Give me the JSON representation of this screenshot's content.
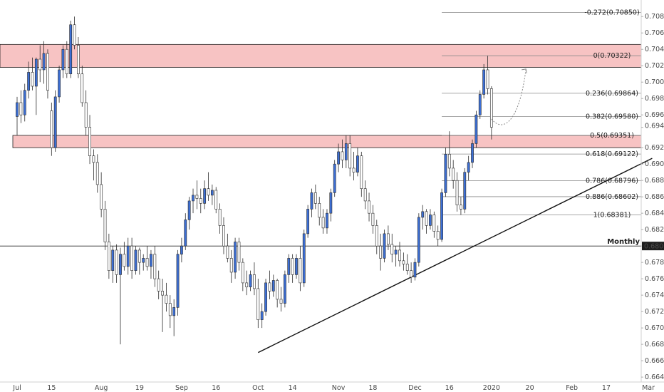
{
  "chart_data": {
    "type": "candlestick",
    "title": "",
    "y_axis": {
      "min": 0.6634,
      "max": 0.7095,
      "ticks": [
        "0.70800",
        "0.70600",
        "0.70400",
        "0.70200",
        "0.70000",
        "0.69800",
        "0.69600",
        "0.69448",
        "0.69200",
        "0.69000",
        "0.68800",
        "0.68600",
        "0.68400",
        "0.68200",
        "0.68000",
        "0.67800",
        "0.67600",
        "0.67400",
        "0.67200",
        "0.67000",
        "0.66800",
        "0.66600",
        "0.66400"
      ],
      "tick_values": [
        0.708,
        0.706,
        0.704,
        0.702,
        0.7,
        0.698,
        0.696,
        0.69448,
        0.692,
        0.69,
        0.688,
        0.686,
        0.684,
        0.682,
        0.68,
        0.678,
        0.676,
        0.674,
        0.672,
        0.67,
        0.668,
        0.666,
        0.664
      ],
      "current_price_label": "0.69448",
      "monthly_label_value": "0.68000"
    },
    "x_axis": {
      "ticks": [
        "Jul",
        "15",
        "Aug",
        "19",
        "Sep",
        "16",
        "Oct",
        "14",
        "Nov",
        "18",
        "Dec",
        "16",
        "2020",
        "20",
        "Feb",
        "17",
        "Mar"
      ],
      "tick_indices": [
        0,
        9,
        22,
        32,
        43,
        52,
        63,
        72,
        84,
        93,
        104,
        113,
        124,
        134,
        145,
        154,
        165
      ]
    },
    "candles": [
      {
        "o": 0.6958,
        "h": 0.6982,
        "l": 0.6935,
        "c": 0.6975
      },
      {
        "o": 0.6975,
        "h": 0.699,
        "l": 0.695,
        "c": 0.696
      },
      {
        "o": 0.696,
        "h": 0.6998,
        "l": 0.6952,
        "c": 0.699
      },
      {
        "o": 0.699,
        "h": 0.7025,
        "l": 0.698,
        "c": 0.7012
      },
      {
        "o": 0.7012,
        "h": 0.703,
        "l": 0.699,
        "c": 0.6995
      },
      {
        "o": 0.6995,
        "h": 0.703,
        "l": 0.696,
        "c": 0.7028
      },
      {
        "o": 0.7028,
        "h": 0.7045,
        "l": 0.7,
        "c": 0.7015
      },
      {
        "o": 0.7015,
        "h": 0.705,
        "l": 0.6998,
        "c": 0.7035
      },
      {
        "o": 0.7035,
        "h": 0.704,
        "l": 0.698,
        "c": 0.699
      },
      {
        "o": 0.6965,
        "h": 0.6975,
        "l": 0.691,
        "c": 0.692
      },
      {
        "o": 0.692,
        "h": 0.699,
        "l": 0.6915,
        "c": 0.6982
      },
      {
        "o": 0.6982,
        "h": 0.702,
        "l": 0.6975,
        "c": 0.7015
      },
      {
        "o": 0.7015,
        "h": 0.7045,
        "l": 0.7005,
        "c": 0.704
      },
      {
        "o": 0.704,
        "h": 0.705,
        "l": 0.7005,
        "c": 0.701
      },
      {
        "o": 0.701,
        "h": 0.7075,
        "l": 0.7005,
        "c": 0.707
      },
      {
        "o": 0.707,
        "h": 0.708,
        "l": 0.704,
        "c": 0.7045
      },
      {
        "o": 0.7045,
        "h": 0.7055,
        "l": 0.7005,
        "c": 0.701
      },
      {
        "o": 0.701,
        "h": 0.702,
        "l": 0.697,
        "c": 0.6975
      },
      {
        "o": 0.6975,
        "h": 0.699,
        "l": 0.6935,
        "c": 0.6945
      },
      {
        "o": 0.6945,
        "h": 0.696,
        "l": 0.69,
        "c": 0.691
      },
      {
        "o": 0.691,
        "h": 0.6918,
        "l": 0.688,
        "c": 0.6902
      },
      {
        "o": 0.6902,
        "h": 0.6912,
        "l": 0.6865,
        "c": 0.6875
      },
      {
        "o": 0.6875,
        "h": 0.689,
        "l": 0.6835,
        "c": 0.6845
      },
      {
        "o": 0.6845,
        "h": 0.6855,
        "l": 0.6795,
        "c": 0.6805
      },
      {
        "o": 0.6805,
        "h": 0.6815,
        "l": 0.676,
        "c": 0.677
      },
      {
        "o": 0.677,
        "h": 0.68,
        "l": 0.6755,
        "c": 0.6795
      },
      {
        "o": 0.6795,
        "h": 0.6802,
        "l": 0.6755,
        "c": 0.6765
      },
      {
        "o": 0.6765,
        "h": 0.6798,
        "l": 0.668,
        "c": 0.679
      },
      {
        "o": 0.679,
        "h": 0.6805,
        "l": 0.677,
        "c": 0.6775
      },
      {
        "o": 0.6775,
        "h": 0.681,
        "l": 0.6765,
        "c": 0.68
      },
      {
        "o": 0.68,
        "h": 0.681,
        "l": 0.676,
        "c": 0.677
      },
      {
        "o": 0.677,
        "h": 0.68,
        "l": 0.6765,
        "c": 0.6795
      },
      {
        "o": 0.6795,
        "h": 0.6798,
        "l": 0.6765,
        "c": 0.678
      },
      {
        "o": 0.678,
        "h": 0.679,
        "l": 0.677,
        "c": 0.6785
      },
      {
        "o": 0.6785,
        "h": 0.68,
        "l": 0.677,
        "c": 0.6775
      },
      {
        "o": 0.6775,
        "h": 0.6795,
        "l": 0.676,
        "c": 0.679
      },
      {
        "o": 0.679,
        "h": 0.68,
        "l": 0.675,
        "c": 0.676
      },
      {
        "o": 0.676,
        "h": 0.677,
        "l": 0.6735,
        "c": 0.6745
      },
      {
        "o": 0.6745,
        "h": 0.676,
        "l": 0.6695,
        "c": 0.674
      },
      {
        "o": 0.674,
        "h": 0.6755,
        "l": 0.672,
        "c": 0.673
      },
      {
        "o": 0.673,
        "h": 0.674,
        "l": 0.67,
        "c": 0.6715
      },
      {
        "o": 0.6715,
        "h": 0.6735,
        "l": 0.669,
        "c": 0.6725
      },
      {
        "o": 0.6725,
        "h": 0.6795,
        "l": 0.6715,
        "c": 0.679
      },
      {
        "o": 0.679,
        "h": 0.681,
        "l": 0.678,
        "c": 0.68
      },
      {
        "o": 0.68,
        "h": 0.684,
        "l": 0.6795,
        "c": 0.6832
      },
      {
        "o": 0.6832,
        "h": 0.686,
        "l": 0.682,
        "c": 0.6855
      },
      {
        "o": 0.6855,
        "h": 0.687,
        "l": 0.684,
        "c": 0.6862
      },
      {
        "o": 0.6862,
        "h": 0.688,
        "l": 0.6845,
        "c": 0.6858
      },
      {
        "o": 0.6858,
        "h": 0.687,
        "l": 0.684,
        "c": 0.6852
      },
      {
        "o": 0.6852,
        "h": 0.688,
        "l": 0.6845,
        "c": 0.687
      },
      {
        "o": 0.687,
        "h": 0.689,
        "l": 0.6855,
        "c": 0.6862
      },
      {
        "o": 0.6862,
        "h": 0.6875,
        "l": 0.685,
        "c": 0.6868
      },
      {
        "o": 0.6868,
        "h": 0.6872,
        "l": 0.684,
        "c": 0.6845
      },
      {
        "o": 0.6845,
        "h": 0.6852,
        "l": 0.6815,
        "c": 0.6825
      },
      {
        "o": 0.6825,
        "h": 0.6835,
        "l": 0.679,
        "c": 0.68
      },
      {
        "o": 0.68,
        "h": 0.6815,
        "l": 0.678,
        "c": 0.6785
      },
      {
        "o": 0.6785,
        "h": 0.6795,
        "l": 0.6755,
        "c": 0.6768
      },
      {
        "o": 0.6768,
        "h": 0.681,
        "l": 0.676,
        "c": 0.6805
      },
      {
        "o": 0.6805,
        "h": 0.681,
        "l": 0.677,
        "c": 0.678
      },
      {
        "o": 0.678,
        "h": 0.6785,
        "l": 0.6745,
        "c": 0.6755
      },
      {
        "o": 0.6755,
        "h": 0.677,
        "l": 0.674,
        "c": 0.675
      },
      {
        "o": 0.675,
        "h": 0.677,
        "l": 0.6745,
        "c": 0.6765
      },
      {
        "o": 0.6765,
        "h": 0.678,
        "l": 0.674,
        "c": 0.6748
      },
      {
        "o": 0.6748,
        "h": 0.676,
        "l": 0.67,
        "c": 0.671
      },
      {
        "o": 0.671,
        "h": 0.673,
        "l": 0.67,
        "c": 0.672
      },
      {
        "o": 0.672,
        "h": 0.676,
        "l": 0.6715,
        "c": 0.6755
      },
      {
        "o": 0.6755,
        "h": 0.677,
        "l": 0.6735,
        "c": 0.6745
      },
      {
        "o": 0.6745,
        "h": 0.6765,
        "l": 0.6738,
        "c": 0.6758
      },
      {
        "o": 0.6758,
        "h": 0.676,
        "l": 0.6725,
        "c": 0.6735
      },
      {
        "o": 0.6735,
        "h": 0.675,
        "l": 0.672,
        "c": 0.673
      },
      {
        "o": 0.673,
        "h": 0.677,
        "l": 0.6725,
        "c": 0.6765
      },
      {
        "o": 0.6765,
        "h": 0.679,
        "l": 0.6755,
        "c": 0.6785
      },
      {
        "o": 0.6785,
        "h": 0.679,
        "l": 0.6755,
        "c": 0.6765
      },
      {
        "o": 0.6765,
        "h": 0.679,
        "l": 0.676,
        "c": 0.6785
      },
      {
        "o": 0.6785,
        "h": 0.68,
        "l": 0.6745,
        "c": 0.6755
      },
      {
        "o": 0.6755,
        "h": 0.682,
        "l": 0.675,
        "c": 0.6815
      },
      {
        "o": 0.6815,
        "h": 0.685,
        "l": 0.681,
        "c": 0.6845
      },
      {
        "o": 0.6845,
        "h": 0.687,
        "l": 0.6835,
        "c": 0.6865
      },
      {
        "o": 0.6865,
        "h": 0.6875,
        "l": 0.6845,
        "c": 0.6852
      },
      {
        "o": 0.6852,
        "h": 0.686,
        "l": 0.6825,
        "c": 0.6835
      },
      {
        "o": 0.6835,
        "h": 0.6845,
        "l": 0.6815,
        "c": 0.6822
      },
      {
        "o": 0.6822,
        "h": 0.6845,
        "l": 0.6815,
        "c": 0.684
      },
      {
        "o": 0.684,
        "h": 0.687,
        "l": 0.683,
        "c": 0.6865
      },
      {
        "o": 0.6865,
        "h": 0.6905,
        "l": 0.686,
        "c": 0.69
      },
      {
        "o": 0.69,
        "h": 0.6925,
        "l": 0.689,
        "c": 0.6915
      },
      {
        "o": 0.6915,
        "h": 0.693,
        "l": 0.6895,
        "c": 0.6905
      },
      {
        "o": 0.6905,
        "h": 0.6935,
        "l": 0.6895,
        "c": 0.6925
      },
      {
        "o": 0.6925,
        "h": 0.6935,
        "l": 0.6885,
        "c": 0.6895
      },
      {
        "o": 0.6895,
        "h": 0.6915,
        "l": 0.688,
        "c": 0.689
      },
      {
        "o": 0.689,
        "h": 0.692,
        "l": 0.6885,
        "c": 0.691
      },
      {
        "o": 0.691,
        "h": 0.6915,
        "l": 0.686,
        "c": 0.687
      },
      {
        "o": 0.687,
        "h": 0.688,
        "l": 0.6845,
        "c": 0.6855
      },
      {
        "o": 0.6855,
        "h": 0.6865,
        "l": 0.683,
        "c": 0.684
      },
      {
        "o": 0.684,
        "h": 0.685,
        "l": 0.6815,
        "c": 0.6825
      },
      {
        "o": 0.6825,
        "h": 0.6832,
        "l": 0.679,
        "c": 0.68
      },
      {
        "o": 0.68,
        "h": 0.6815,
        "l": 0.677,
        "c": 0.6785
      },
      {
        "o": 0.6785,
        "h": 0.682,
        "l": 0.678,
        "c": 0.6815
      },
      {
        "o": 0.6815,
        "h": 0.6825,
        "l": 0.6795,
        "c": 0.6802
      },
      {
        "o": 0.6802,
        "h": 0.6815,
        "l": 0.678,
        "c": 0.679
      },
      {
        "o": 0.679,
        "h": 0.68,
        "l": 0.6775,
        "c": 0.6795
      },
      {
        "o": 0.6795,
        "h": 0.6805,
        "l": 0.6775,
        "c": 0.6782
      },
      {
        "o": 0.6782,
        "h": 0.6792,
        "l": 0.677,
        "c": 0.6778
      },
      {
        "o": 0.6778,
        "h": 0.679,
        "l": 0.6765,
        "c": 0.677
      },
      {
        "o": 0.677,
        "h": 0.678,
        "l": 0.6755,
        "c": 0.6762
      },
      {
        "o": 0.6762,
        "h": 0.6785,
        "l": 0.6758,
        "c": 0.678
      },
      {
        "o": 0.678,
        "h": 0.684,
        "l": 0.6775,
        "c": 0.6835
      },
      {
        "o": 0.6835,
        "h": 0.685,
        "l": 0.682,
        "c": 0.6842
      },
      {
        "o": 0.6842,
        "h": 0.6845,
        "l": 0.6815,
        "c": 0.6825
      },
      {
        "o": 0.6825,
        "h": 0.6845,
        "l": 0.682,
        "c": 0.6838
      },
      {
        "o": 0.6838,
        "h": 0.6842,
        "l": 0.681,
        "c": 0.6818
      },
      {
        "o": 0.6818,
        "h": 0.6825,
        "l": 0.68,
        "c": 0.6808
      },
      {
        "o": 0.6808,
        "h": 0.687,
        "l": 0.6805,
        "c": 0.6865
      },
      {
        "o": 0.6865,
        "h": 0.692,
        "l": 0.686,
        "c": 0.6912
      },
      {
        "o": 0.6912,
        "h": 0.694,
        "l": 0.6885,
        "c": 0.6895
      },
      {
        "o": 0.6895,
        "h": 0.6905,
        "l": 0.687,
        "c": 0.688
      },
      {
        "o": 0.688,
        "h": 0.689,
        "l": 0.6842,
        "c": 0.685
      },
      {
        "o": 0.685,
        "h": 0.686,
        "l": 0.6838,
        "c": 0.6845
      },
      {
        "o": 0.6845,
        "h": 0.6895,
        "l": 0.684,
        "c": 0.689
      },
      {
        "o": 0.689,
        "h": 0.691,
        "l": 0.688,
        "c": 0.6902
      },
      {
        "o": 0.6902,
        "h": 0.693,
        "l": 0.6895,
        "c": 0.6925
      },
      {
        "o": 0.6925,
        "h": 0.6965,
        "l": 0.692,
        "c": 0.696
      },
      {
        "o": 0.696,
        "h": 0.699,
        "l": 0.6955,
        "c": 0.6985
      },
      {
        "o": 0.6985,
        "h": 0.7022,
        "l": 0.698,
        "c": 0.7015
      },
      {
        "o": 0.7015,
        "h": 0.7032,
        "l": 0.6985,
        "c": 0.6992
      },
      {
        "o": 0.6992,
        "h": 0.6995,
        "l": 0.693,
        "c": 0.6945
      }
    ],
    "fibonacci": [
      {
        "label": "-0.272(0.70850)",
        "value": 0.7085
      },
      {
        "label": "0(0.70322)",
        "value": 0.70322
      },
      {
        "label": "0.236(0.69864)",
        "value": 0.69864
      },
      {
        "label": "0.382(0.69580)",
        "value": 0.6958
      },
      {
        "label": "0.5(0.69351)",
        "value": 0.69351
      },
      {
        "label": "0.618(0.69122)",
        "value": 0.69122
      },
      {
        "label": "0.786(0.68796)",
        "value": 0.68796
      },
      {
        "label": "0.886(0.68602)",
        "value": 0.68602
      },
      {
        "label": "1(0.68381)",
        "value": 0.68381
      }
    ],
    "zones": [
      {
        "top": 0.7046,
        "bottom": 0.7018
      },
      {
        "top": 0.6935,
        "bottom": 0.692
      }
    ],
    "trendline": {
      "start_index": 63,
      "start_price": 0.667,
      "end_index": 166,
      "end_price": 0.6907
    },
    "horizontal_line": {
      "label": "Monthly",
      "value": 0.68
    },
    "projection": {
      "from_index": 124,
      "from_price": 0.6955,
      "to_index": 133,
      "to_price": 0.7016
    },
    "colors": {
      "bull_candle": "#3d6fd4",
      "bear_candle": "#ffffff",
      "zone_fill": "#f7c3c3",
      "zone_stroke": "#1e1e1e",
      "fib_line": "#8a8a8a",
      "axis_text": "#4a4a4a",
      "label_bg": "#1e1e1e",
      "label_fg": "#ffffff"
    }
  }
}
